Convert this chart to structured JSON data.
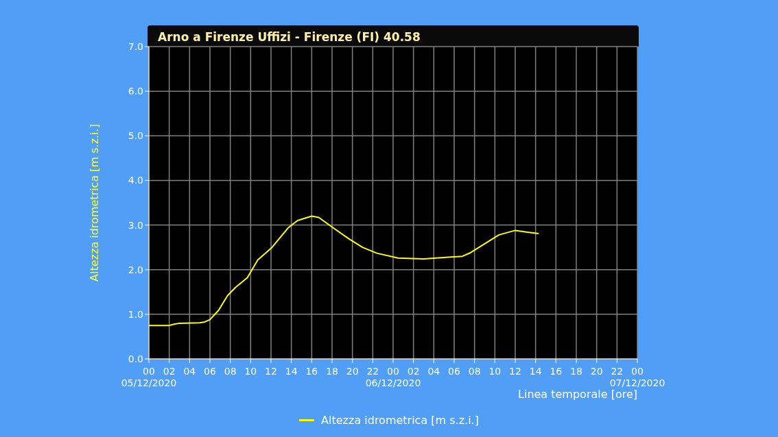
{
  "chart_data": {
    "type": "line",
    "title": "Arno a Firenze Uffizi - Firenze (FI) 40.58",
    "xlabel": "Linea temporale [ore]",
    "ylabel": "Altezza idrometrica [m s.z.i.]",
    "x": [
      "2020-12-05T00:00",
      "2020-12-05T02:00",
      "2020-12-05T02:30",
      "2020-12-05T03:00",
      "2020-12-05T05:00",
      "2020-12-05T05:30",
      "2020-12-05T06:00",
      "2020-12-05T06:51",
      "2020-12-05T07:44",
      "2020-12-05T08:30",
      "2020-12-05T09:40",
      "2020-12-05T10:42",
      "2020-12-05T12:06",
      "2020-12-05T13:42",
      "2020-12-05T14:36",
      "2020-12-05T16:00",
      "2020-12-05T16:42",
      "2020-12-05T18:06",
      "2020-12-05T19:36",
      "2020-12-05T21:00",
      "2020-12-05T22:24",
      "2020-12-06T00:30",
      "2020-12-06T03:00",
      "2020-12-06T05:24",
      "2020-12-06T06:48",
      "2020-12-06T07:36",
      "2020-12-06T09:00",
      "2020-12-06T10:24",
      "2020-12-06T12:00",
      "2020-12-06T13:12",
      "2020-12-06T14:18"
    ],
    "series": [
      {
        "name": "Altezza idrometrica [m s.z.i.]",
        "color": "#ffff00",
        "values": [
          0.75,
          0.75,
          0.78,
          0.8,
          0.81,
          0.83,
          0.88,
          1.09,
          1.42,
          1.6,
          1.82,
          2.22,
          2.5,
          2.94,
          3.1,
          3.2,
          3.17,
          2.94,
          2.7,
          2.5,
          2.37,
          2.26,
          2.24,
          2.28,
          2.3,
          2.38,
          2.58,
          2.78,
          2.88,
          2.84,
          2.81
        ]
      }
    ],
    "xlim": [
      "2020-12-05T00:00",
      "2020-12-07T00:00"
    ],
    "xticks": [
      {
        "value": "2020-12-05T00:00",
        "label": "00\n05/12/2020"
      },
      {
        "value": "2020-12-05T02:00",
        "label": "02"
      },
      {
        "value": "2020-12-05T04:00",
        "label": "04"
      },
      {
        "value": "2020-12-05T06:00",
        "label": "06"
      },
      {
        "value": "2020-12-05T08:00",
        "label": "08"
      },
      {
        "value": "2020-12-05T10:00",
        "label": "10"
      },
      {
        "value": "2020-12-05T12:00",
        "label": "12"
      },
      {
        "value": "2020-12-05T14:00",
        "label": "14"
      },
      {
        "value": "2020-12-05T16:00",
        "label": "16"
      },
      {
        "value": "2020-12-05T18:00",
        "label": "18"
      },
      {
        "value": "2020-12-05T20:00",
        "label": "20"
      },
      {
        "value": "2020-12-05T22:00",
        "label": "22"
      },
      {
        "value": "2020-12-06T00:00",
        "label": "00\n06/12/2020"
      },
      {
        "value": "2020-12-06T02:00",
        "label": "02"
      },
      {
        "value": "2020-12-06T04:00",
        "label": "04"
      },
      {
        "value": "2020-12-06T06:00",
        "label": "06"
      },
      {
        "value": "2020-12-06T08:00",
        "label": "08"
      },
      {
        "value": "2020-12-06T10:00",
        "label": "10"
      },
      {
        "value": "2020-12-06T12:00",
        "label": "12"
      },
      {
        "value": "2020-12-06T14:00",
        "label": "14"
      },
      {
        "value": "2020-12-06T16:00",
        "label": "16"
      },
      {
        "value": "2020-12-06T18:00",
        "label": "18"
      },
      {
        "value": "2020-12-06T20:00",
        "label": "20"
      },
      {
        "value": "2020-12-06T22:00",
        "label": "22"
      },
      {
        "value": "2020-12-07T00:00",
        "label": "00\n07/12/2020"
      }
    ],
    "ylim": [
      0,
      7
    ],
    "yticks": [
      {
        "value": 0,
        "label": "0.0"
      },
      {
        "value": 1,
        "label": "1.0"
      },
      {
        "value": 2,
        "label": "2.0"
      },
      {
        "value": 3,
        "label": "3.0"
      },
      {
        "value": 4,
        "label": "4.0"
      },
      {
        "value": 5,
        "label": "5.0"
      },
      {
        "value": 6,
        "label": "6.0"
      },
      {
        "value": 7,
        "label": "7.0"
      }
    ],
    "grid": true,
    "legend": "bottom",
    "marker": "none",
    "line_style": "solid"
  }
}
